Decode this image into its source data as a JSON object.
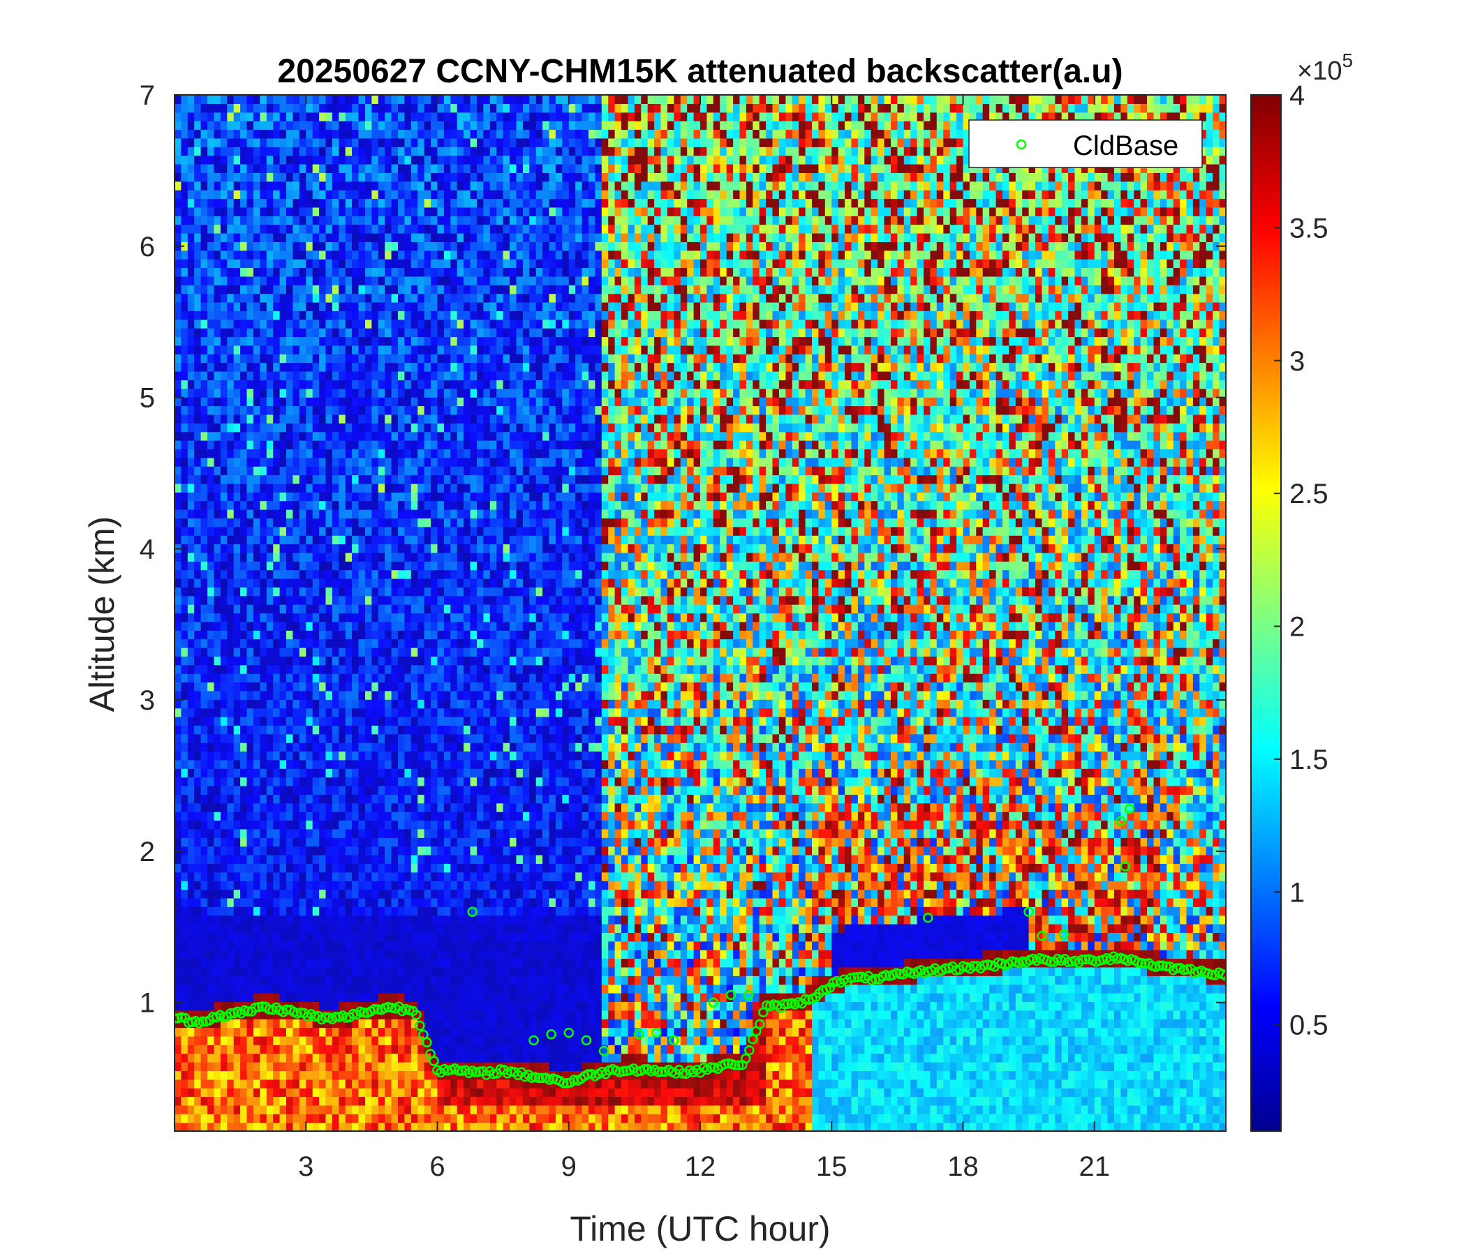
{
  "chart_data": {
    "type": "heatmap",
    "title": "20250627 CCNY-CHM15K attenuated backscatter(a.u)",
    "xlabel": "Time (UTC hour)",
    "ylabel": "Altitude (km)",
    "xlim": [
      0,
      24
    ],
    "ylim": [
      0.15,
      7
    ],
    "xticks": [
      3,
      6,
      9,
      12,
      15,
      18,
      21
    ],
    "xtick_labels": [
      "3",
      "6",
      "9",
      "12",
      "15",
      "18",
      "21"
    ],
    "yticks": [
      1,
      2,
      3,
      4,
      5,
      6,
      7
    ],
    "ytick_labels": [
      "1",
      "2",
      "3",
      "4",
      "5",
      "6",
      "7"
    ],
    "colorbar": {
      "clim": [
        0.1,
        4.0
      ],
      "ticks": [
        0.5,
        1,
        1.5,
        2,
        2.5,
        3,
        3.5,
        4
      ],
      "tick_labels": [
        "0.5",
        "1",
        "1.5",
        "2",
        "2.5",
        "3",
        "3.5",
        "4"
      ],
      "exponent_label": "×10",
      "exponent_power": "5",
      "colormap": "jet"
    },
    "legend": {
      "entries": [
        "CldBase"
      ],
      "position": "top-right",
      "marker_color": "#00ff00"
    },
    "cloud_base": [
      {
        "t": 0.0,
        "h": 0.9
      },
      {
        "t": 0.5,
        "h": 0.87
      },
      {
        "t": 1.0,
        "h": 0.91
      },
      {
        "t": 1.5,
        "h": 0.93
      },
      {
        "t": 2.0,
        "h": 0.97
      },
      {
        "t": 2.5,
        "h": 0.95
      },
      {
        "t": 3.0,
        "h": 0.92
      },
      {
        "t": 3.5,
        "h": 0.89
      },
      {
        "t": 4.0,
        "h": 0.91
      },
      {
        "t": 4.5,
        "h": 0.95
      },
      {
        "t": 5.0,
        "h": 0.97
      },
      {
        "t": 5.5,
        "h": 0.94
      },
      {
        "t": 6.0,
        "h": 0.55
      },
      {
        "t": 6.5,
        "h": 0.55
      },
      {
        "t": 7.0,
        "h": 0.53
      },
      {
        "t": 7.5,
        "h": 0.55
      },
      {
        "t": 8.0,
        "h": 0.52
      },
      {
        "t": 8.5,
        "h": 0.5
      },
      {
        "t": 9.0,
        "h": 0.47
      },
      {
        "t": 9.5,
        "h": 0.52
      },
      {
        "t": 10.0,
        "h": 0.55
      },
      {
        "t": 10.5,
        "h": 0.56
      },
      {
        "t": 11.0,
        "h": 0.55
      },
      {
        "t": 11.5,
        "h": 0.54
      },
      {
        "t": 12.0,
        "h": 0.55
      },
      {
        "t": 12.5,
        "h": 0.58
      },
      {
        "t": 13.0,
        "h": 0.6
      },
      {
        "t": 13.5,
        "h": 0.97
      },
      {
        "t": 14.0,
        "h": 0.98
      },
      {
        "t": 14.5,
        "h": 1.02
      },
      {
        "t": 15.0,
        "h": 1.12
      },
      {
        "t": 15.5,
        "h": 1.16
      },
      {
        "t": 16.0,
        "h": 1.16
      },
      {
        "t": 16.5,
        "h": 1.18
      },
      {
        "t": 17.0,
        "h": 1.2
      },
      {
        "t": 17.5,
        "h": 1.22
      },
      {
        "t": 18.0,
        "h": 1.23
      },
      {
        "t": 18.5,
        "h": 1.24
      },
      {
        "t": 19.0,
        "h": 1.26
      },
      {
        "t": 19.5,
        "h": 1.28
      },
      {
        "t": 20.0,
        "h": 1.28
      },
      {
        "t": 20.5,
        "h": 1.27
      },
      {
        "t": 21.0,
        "h": 1.28
      },
      {
        "t": 21.5,
        "h": 1.3
      },
      {
        "t": 22.0,
        "h": 1.27
      },
      {
        "t": 22.5,
        "h": 1.24
      },
      {
        "t": 23.0,
        "h": 1.22
      },
      {
        "t": 23.5,
        "h": 1.2
      },
      {
        "t": 24.0,
        "h": 1.19
      }
    ],
    "cloud_base_secondary": [
      {
        "t": 8.2,
        "h": 0.75
      },
      {
        "t": 8.6,
        "h": 0.79
      },
      {
        "t": 9.0,
        "h": 0.8
      },
      {
        "t": 9.4,
        "h": 0.75
      },
      {
        "t": 9.8,
        "h": 0.68
      },
      {
        "t": 10.6,
        "h": 0.79
      },
      {
        "t": 11.0,
        "h": 0.8
      },
      {
        "t": 11.4,
        "h": 0.75
      },
      {
        "t": 12.3,
        "h": 1.0
      },
      {
        "t": 12.7,
        "h": 1.05
      },
      {
        "t": 13.1,
        "h": 1.05
      },
      {
        "t": 19.5,
        "h": 1.6
      },
      {
        "t": 19.8,
        "h": 1.44
      },
      {
        "t": 20.3,
        "h": 1.45
      },
      {
        "t": 21.6,
        "h": 2.2
      },
      {
        "t": 21.8,
        "h": 2.28
      },
      {
        "t": 21.7,
        "h": 1.9
      },
      {
        "t": 6.8,
        "h": 1.6
      },
      {
        "t": 17.2,
        "h": 1.56
      }
    ]
  }
}
